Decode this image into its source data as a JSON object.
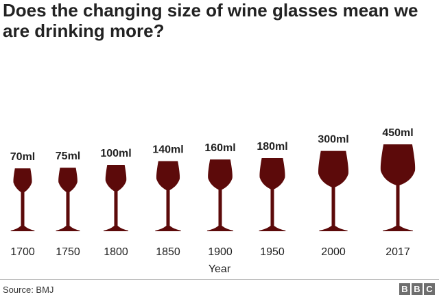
{
  "title": "Does the changing size of wine glasses mean we are drinking more?",
  "source": "Source: BMJ",
  "logo_letters": [
    "B",
    "B",
    "C"
  ],
  "colors": {
    "wine": "#5c0a0a",
    "text": "#222222"
  },
  "chart_data": {
    "type": "bar",
    "title": "Does the changing size of wine glasses mean we are drinking more?",
    "xlabel": "Year",
    "ylabel": "",
    "categories": [
      "1700",
      "1750",
      "1800",
      "1850",
      "1900",
      "1950",
      "2000",
      "2017"
    ],
    "values": [
      70,
      75,
      100,
      140,
      160,
      180,
      300,
      450
    ],
    "value_labels": [
      "70ml",
      "75ml",
      "100ml",
      "140ml",
      "160ml",
      "180ml",
      "300ml",
      "450ml"
    ],
    "unit": "ml",
    "grid": false,
    "legend": "none"
  }
}
